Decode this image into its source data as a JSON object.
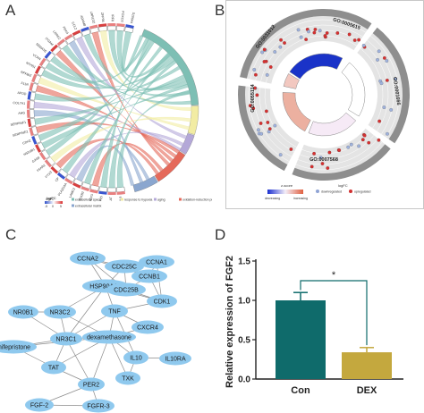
{
  "panels": {
    "A": {
      "letter": "A",
      "genes": [
        "S100A4",
        "FOXO3",
        "IRF8",
        "ZFP36",
        "LRRC32",
        "ADAM8",
        "CCL2",
        "PDK4",
        "LRRK2",
        "ITGAM",
        "SEMA3E",
        "VCAN",
        "NTHS1",
        "NFKBIZ",
        "F11R",
        "APOD",
        "COL7A1",
        "AHG",
        "SERPINF1",
        "SERPINE2",
        "CDH2",
        "HSD3B1",
        "GAS6",
        "FFAR2",
        "PTX3",
        "CP",
        "PLA2G4A",
        "LAMC2",
        "HOXB2",
        "ATF3",
        "GDF15",
        "PLAT",
        "IL6"
      ],
      "legend": {
        "scale_title": "logFC",
        "scale_min": "-5",
        "scale_mid": "0",
        "scale_max": "5",
        "terms": [
          "extracellular space",
          "response to hypoxia",
          "aging",
          "oxidation-reduction process",
          "extracellular matrix"
        ],
        "term_colors": [
          "#7dbfb4",
          "#f2eca3",
          "#b4a8d8",
          "#e5695a",
          "#8aa6cf"
        ]
      }
    },
    "B": {
      "letter": "B",
      "terms": [
        "GO:0005615",
        "GO:0001666",
        "GO:0007568",
        "GO:0055114",
        "GO:0031012"
      ],
      "legend": {
        "zscore_title": "z-score",
        "zscore_low": "decreasing",
        "zscore_high": "increasing",
        "logfc_title": "logFC",
        "down_label": "downregulated",
        "up_label": "upregulated"
      }
    },
    "C": {
      "letter": "C",
      "nodes": [
        "CDC25C",
        "CCNA2",
        "CCNA1",
        "CCNB1",
        "HSP90AA1",
        "CDC25B",
        "CDK1",
        "NR0B1",
        "NR3C2",
        "TNF",
        "CXCR4",
        "NR3C1",
        "mifepristone",
        "dexamethasone",
        "TAT",
        "IL10",
        "IL10RA",
        "TXK",
        "PER2",
        "FGF-2",
        "FGFR-3"
      ]
    },
    "D": {
      "letter": "D",
      "chart_data": {
        "type": "bar",
        "categories": [
          "Con",
          "DEX"
        ],
        "values": [
          1.0,
          0.34
        ],
        "errors": [
          0.1,
          0.06
        ],
        "colors": [
          "#0f6b6b",
          "#c4a83e"
        ],
        "ylabel": "Relative expression of FGF2",
        "ylim": [
          0,
          1.5
        ],
        "yticks": [
          "0.0",
          "0.5",
          "1.0",
          "1.5"
        ],
        "significance": "*"
      }
    }
  }
}
